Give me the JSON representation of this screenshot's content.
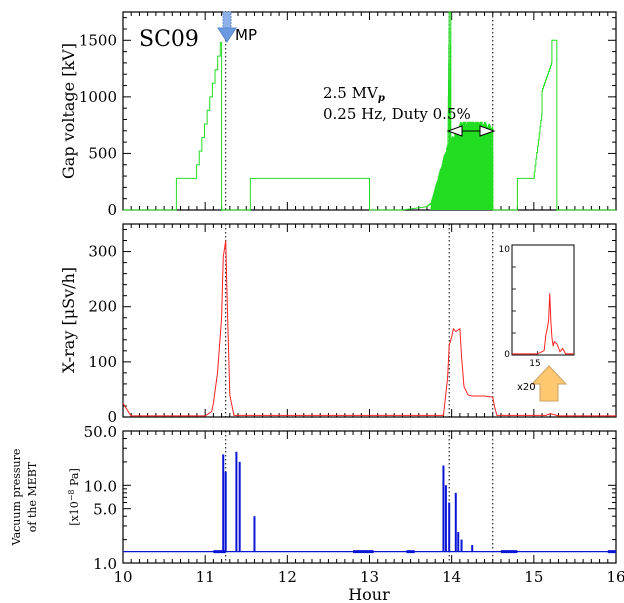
{
  "chart_data": [
    {
      "type": "line",
      "panel": "gap-voltage",
      "ylabel": "Gap voltage [kV]",
      "ylim": [
        0,
        1750
      ],
      "yticks": [
        0,
        500,
        1000,
        1500
      ],
      "label": "SC09",
      "marker_label": "MP",
      "annotation_line1": "2.5 MV",
      "annotation_sub": "p",
      "annotation_line2": "0.25 Hz, Duty 0.5%",
      "color": "#22dd22",
      "x": [
        10.0,
        10.25,
        10.25,
        10.43,
        10.43,
        10.65,
        10.65,
        10.88,
        11.2,
        11.2,
        11.25,
        11.25,
        11.55,
        11.55,
        12.6,
        12.6,
        13.0,
        13.0,
        13.4,
        13.7,
        13.75,
        13.85,
        13.95,
        13.97,
        13.97,
        13.99,
        13.99,
        14.1,
        14.25,
        14.45,
        14.5,
        14.5,
        14.6,
        14.6,
        14.8,
        14.8,
        15.0,
        15.1,
        15.1,
        15.22,
        15.22,
        15.28,
        15.28,
        16.0
      ],
      "y": [
        0,
        0,
        0,
        0,
        0,
        0,
        280,
        280,
        1480,
        0,
        0,
        0,
        0,
        280,
        280,
        280,
        280,
        0,
        0,
        30,
        60,
        150,
        250,
        1750,
        0,
        1750,
        450,
        650,
        700,
        650,
        500,
        0,
        0,
        0,
        0,
        280,
        280,
        850,
        1050,
        1300,
        1500,
        1500,
        0,
        0
      ],
      "burst": {
        "x_start": 13.75,
        "x_end": 14.5,
        "base": [
          60,
          450,
          640,
          650,
          600
        ],
        "peak": 780
      },
      "vlines": [
        11.25,
        13.97,
        14.5
      ],
      "arrow_x": [
        14.0,
        14.5
      ]
    },
    {
      "type": "line",
      "panel": "x-ray",
      "ylabel": "X-ray [μSv/h]",
      "ylim": [
        0,
        350
      ],
      "yticks": [
        0,
        100,
        200,
        300
      ],
      "color": "#ff2020",
      "x": [
        10.0,
        10.08,
        10.1,
        11.0,
        11.08,
        11.1,
        11.15,
        11.2,
        11.22,
        11.25,
        11.27,
        11.3,
        11.35,
        13.9,
        13.95,
        13.97,
        14.0,
        14.02,
        14.05,
        14.1,
        14.12,
        14.15,
        14.2,
        14.25,
        14.4,
        14.5,
        14.52,
        14.55,
        15.15,
        15.2,
        15.25,
        15.3,
        16.0
      ],
      "y": [
        25,
        6,
        2,
        2,
        10,
        25,
        80,
        180,
        290,
        320,
        200,
        40,
        3,
        3,
        70,
        130,
        145,
        160,
        155,
        160,
        110,
        55,
        40,
        38,
        38,
        36,
        20,
        3,
        3,
        6,
        4,
        2,
        2
      ],
      "inset": {
        "ytick_top": "10",
        "ytick_bottom": "0",
        "xtick": "15",
        "scale_label": "x20",
        "ylim": [
          0,
          10
        ],
        "xlim": [
          14.55,
          15.65
        ],
        "x": [
          14.55,
          14.9,
          15.0,
          15.08,
          15.12,
          15.15,
          15.18,
          15.2,
          15.22,
          15.24,
          15.26,
          15.28,
          15.3,
          15.35,
          15.4,
          15.45,
          15.5,
          15.65
        ],
        "y": [
          0.1,
          0.1,
          0.1,
          0.3,
          0.4,
          1.8,
          2.5,
          3.2,
          5.6,
          3.0,
          1.5,
          0.8,
          1.2,
          1.0,
          0.3,
          0.6,
          0.1,
          0.1
        ]
      },
      "vlines": [
        11.25,
        13.97,
        14.5
      ]
    },
    {
      "type": "line",
      "panel": "vacuum",
      "ylabel_line1": "Vacuum pressure",
      "ylabel_line2": "of the MEBT",
      "unit_prefix": "[x10",
      "unit_exp": "−8",
      "unit_suffix": " Pa]",
      "yscale": "log",
      "ylim": [
        1.0,
        50.0
      ],
      "ytick_labels": [
        "1.0",
        "5.0",
        "10.0",
        "50.0"
      ],
      "color": "#0a14d4",
      "baseline": 1.4,
      "spikes": [
        {
          "x": 11.22,
          "y": 25.0
        },
        {
          "x": 11.25,
          "y": 15.0
        },
        {
          "x": 11.38,
          "y": 27.0
        },
        {
          "x": 11.42,
          "y": 20.0
        },
        {
          "x": 11.6,
          "y": 4.0
        },
        {
          "x": 13.9,
          "y": 18.0
        },
        {
          "x": 13.93,
          "y": 10.0
        },
        {
          "x": 13.97,
          "y": 6.0
        },
        {
          "x": 14.05,
          "y": 8.0
        },
        {
          "x": 14.08,
          "y": 2.5
        },
        {
          "x": 14.12,
          "y": 2.0
        },
        {
          "x": 14.25,
          "y": 1.7
        }
      ],
      "vlines": [
        11.25,
        13.97,
        14.5
      ]
    }
  ],
  "xaxis": {
    "label": "Hour",
    "range": [
      10,
      16
    ],
    "ticks": [
      "10",
      "11",
      "12",
      "13",
      "14",
      "15",
      "16"
    ]
  }
}
